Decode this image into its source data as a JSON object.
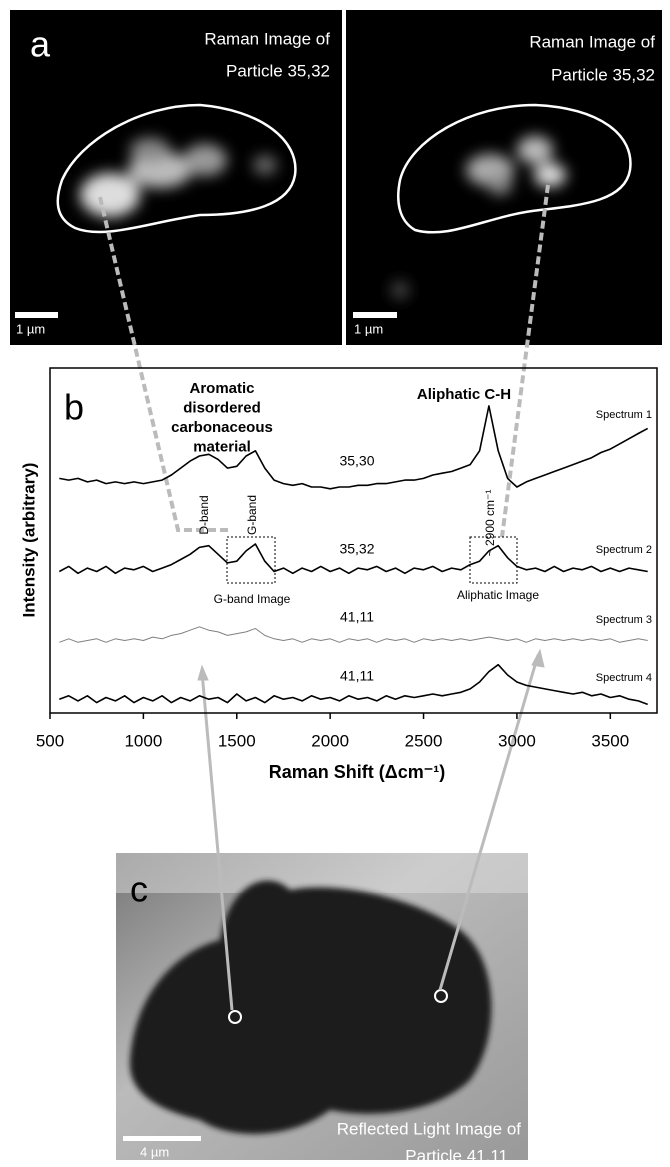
{
  "panel_a": {
    "label": "a",
    "images": [
      {
        "title_lines": [
          "Raman Image of",
          "Particle 35,32"
        ],
        "scale_bar": "1 µm"
      },
      {
        "title_lines": [
          "Raman Image of",
          "Particle 35,32"
        ],
        "scale_bar": "1 µm"
      }
    ]
  },
  "panel_c": {
    "label": "c",
    "title_lines": [
      "Reflected Light Image of",
      "Particle 41,11"
    ],
    "scale_bar": "4 µm"
  },
  "chart_data": {
    "type": "line",
    "panel_label": "b",
    "x_label": "Raman Shift (Δcm⁻¹)",
    "y_label": "Intensity (arbitrary)",
    "xlim": [
      500,
      3750
    ],
    "xticks": [
      500,
      1000,
      1500,
      2000,
      2500,
      3000,
      3500
    ],
    "ylim": [
      0,
      100
    ],
    "annotations": {
      "aromatic_lines": [
        "Aromatic",
        "disordered",
        "carbonaceous",
        "material"
      ],
      "aliphatic": "Aliphatic C-H",
      "d_band": "D-band",
      "g_band": "G-band",
      "ch_peak": "~ 2900 cm⁻¹",
      "g_band_image": "G-band Image",
      "aliphatic_image": "Aliphatic Image"
    },
    "x": [
      550,
      600,
      650,
      700,
      750,
      800,
      850,
      900,
      950,
      1000,
      1050,
      1100,
      1150,
      1200,
      1250,
      1300,
      1350,
      1400,
      1450,
      1500,
      1550,
      1600,
      1650,
      1700,
      1750,
      1800,
      1850,
      1900,
      1950,
      2000,
      2050,
      2100,
      2150,
      2200,
      2250,
      2300,
      2350,
      2400,
      2450,
      2500,
      2550,
      2600,
      2650,
      2700,
      2750,
      2800,
      2850,
      2900,
      2950,
      3000,
      3050,
      3100,
      3150,
      3200,
      3250,
      3300,
      3350,
      3400,
      3450,
      3500,
      3550,
      3600,
      3650,
      3700
    ],
    "series": [
      {
        "name": "Spectrum 1",
        "particle": "35,30",
        "color": "#000000",
        "values": [
          68,
          67.5,
          68,
          67,
          67.5,
          66.5,
          67,
          66.5,
          67,
          66.5,
          67,
          67.5,
          69,
          71,
          73,
          74.5,
          75,
          73.5,
          71,
          71.5,
          74.5,
          76,
          71,
          67.5,
          66.5,
          66,
          66.5,
          65.5,
          65.5,
          65,
          65.5,
          65.5,
          66,
          66,
          66.5,
          66.5,
          67,
          67.5,
          67.5,
          68,
          69,
          69.5,
          70,
          71,
          72,
          76,
          89,
          76,
          68,
          65.5,
          67,
          68,
          69,
          70,
          71,
          72,
          73,
          74,
          75.5,
          76.5,
          78,
          79.5,
          81,
          82.5
        ]
      },
      {
        "name": "Spectrum 2",
        "particle": "35,32",
        "color": "#000000",
        "values": [
          41,
          42.5,
          40.5,
          42,
          41,
          42.5,
          40.5,
          42,
          41.5,
          42.5,
          41,
          42,
          43,
          44.5,
          46,
          48,
          48.5,
          46,
          43.5,
          44,
          47,
          49,
          44,
          41,
          42,
          40.5,
          42,
          41,
          42.5,
          41,
          42,
          40.5,
          42,
          41.5,
          42.5,
          41,
          42,
          40.5,
          42,
          41.5,
          42.5,
          41,
          42,
          41.5,
          43,
          44,
          47,
          48.5,
          45,
          42.5,
          41.5,
          42,
          41,
          42.5,
          41,
          42,
          41.5,
          42.5,
          41,
          42,
          41,
          42,
          41.5,
          41
        ]
      },
      {
        "name": "Spectrum 3",
        "particle": "41,11",
        "color": "#808080",
        "values": [
          20.5,
          21.5,
          20.5,
          21,
          21.5,
          20.5,
          21.5,
          21,
          21.5,
          21,
          22,
          21.5,
          22.5,
          23,
          24,
          25,
          24,
          23.5,
          22.5,
          23,
          23.5,
          24.5,
          22.5,
          21.5,
          21,
          21.5,
          20.5,
          21.5,
          21,
          21.5,
          20.5,
          21.5,
          21,
          21.5,
          20.5,
          21.5,
          21,
          21.5,
          20.5,
          21.5,
          21,
          21.5,
          21,
          21.5,
          21,
          21.5,
          22,
          21.5,
          21,
          21.5,
          20.5,
          21.5,
          21,
          21.5,
          21,
          21.5,
          21,
          21.5,
          21,
          21.5,
          20.5,
          21,
          21.5,
          21
        ]
      },
      {
        "name": "Spectrum 4",
        "particle": "41,11",
        "color": "#000000",
        "values": [
          4,
          5,
          3.5,
          5,
          3,
          4.5,
          3.5,
          5,
          3,
          4.5,
          3.5,
          5,
          3,
          4.5,
          3.5,
          5,
          4,
          4.5,
          3,
          5.5,
          3.5,
          4.5,
          3,
          5,
          4,
          4.5,
          3.5,
          5,
          4,
          4.5,
          3.5,
          5,
          4,
          4.5,
          3.5,
          5,
          4,
          5,
          4.5,
          5,
          5.5,
          5,
          5.5,
          6,
          7,
          9,
          12,
          14,
          11,
          9,
          8,
          7.5,
          7,
          6.5,
          6,
          5.5,
          6,
          5,
          5.5,
          4.5,
          5,
          4,
          3.5,
          2.5
        ]
      }
    ]
  }
}
